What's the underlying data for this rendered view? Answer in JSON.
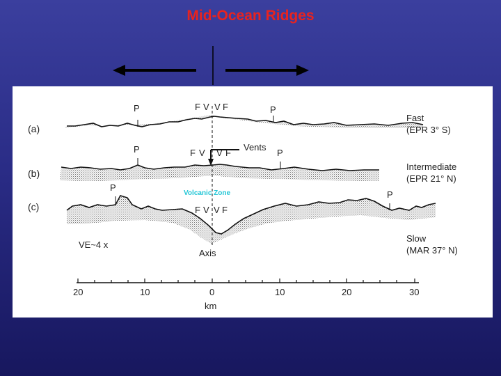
{
  "slide": {
    "title": "Mid-Ocean Ridges"
  },
  "profiles": [
    {
      "label": "(a)",
      "type": "Fast",
      "location": "(EPR 3° S)"
    },
    {
      "label": "(b)",
      "type": "Intermediate",
      "location": "(EPR 21° N)"
    },
    {
      "label": "(c)",
      "type": "Slow",
      "location": "(MAR 37° N)"
    }
  ],
  "annotations": {
    "p": "P",
    "f": "F",
    "v": "V",
    "vents": "Vents",
    "volcanic_zone": "Volcanic Zone",
    "axis": "Axis",
    "ve": "VE~4 x"
  },
  "scale": {
    "ticks": [
      "20",
      "10",
      "0",
      "10",
      "20",
      "30"
    ],
    "unit": "km"
  },
  "colors": {
    "title": "#e8231f",
    "volcanic_zone": "#22c6d6",
    "background_top": "#3b3f9e",
    "background_bottom": "#17175e"
  }
}
